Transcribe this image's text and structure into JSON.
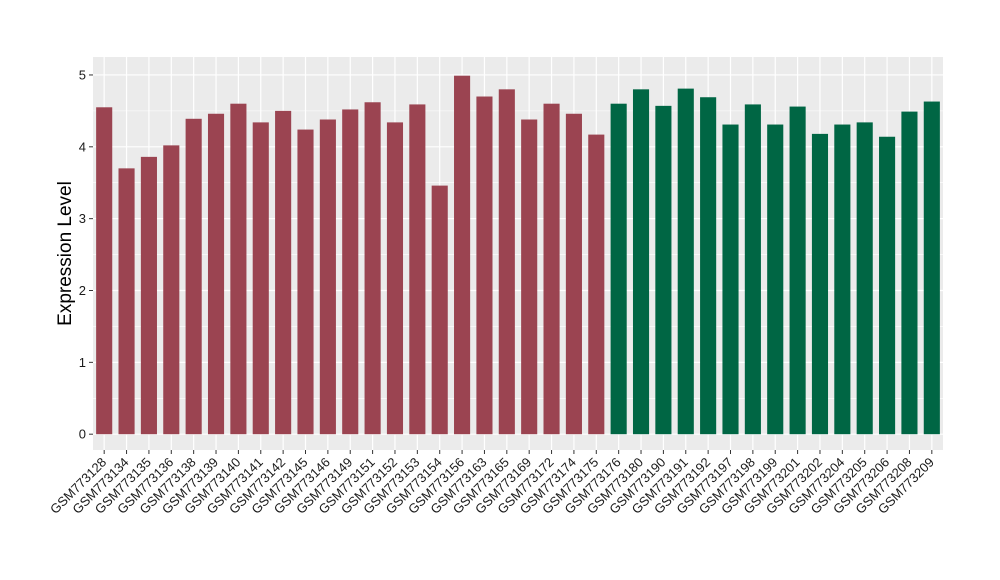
{
  "chart_data": {
    "type": "bar",
    "ylabel": "Expression Level",
    "xlabel": "",
    "ylim": [
      -0.22,
      5.25
    ],
    "y_ticks": [
      0,
      1,
      2,
      3,
      4,
      5
    ],
    "grid": true,
    "background_color": "#ebebeb",
    "grid_color": "#ffffff",
    "categories": [
      "GSM773128",
      "GSM773134",
      "GSM773135",
      "GSM773136",
      "GSM773138",
      "GSM773139",
      "GSM773140",
      "GSM773141",
      "GSM773142",
      "GSM773145",
      "GSM773146",
      "GSM773149",
      "GSM773151",
      "GSM773152",
      "GSM773153",
      "GSM773154",
      "GSM773156",
      "GSM773163",
      "GSM773165",
      "GSM773169",
      "GSM773172",
      "GSM773174",
      "GSM773175",
      "GSM773176",
      "GSM773180",
      "GSM773190",
      "GSM773191",
      "GSM773192",
      "GSM773197",
      "GSM773198",
      "GSM773199",
      "GSM773201",
      "GSM773202",
      "GSM773204",
      "GSM773205",
      "GSM773206",
      "GSM773208",
      "GSM773209"
    ],
    "values": [
      4.55,
      3.7,
      3.86,
      4.02,
      4.39,
      4.46,
      4.6,
      4.34,
      4.5,
      4.24,
      4.38,
      4.52,
      4.62,
      4.34,
      4.59,
      3.46,
      4.99,
      4.7,
      4.8,
      4.38,
      4.6,
      4.46,
      4.17,
      4.6,
      4.8,
      4.57,
      4.81,
      4.69,
      4.31,
      4.59,
      4.31,
      4.56,
      4.18,
      4.31,
      4.34,
      4.14,
      4.49,
      4.63
    ],
    "groups": [
      0,
      0,
      0,
      0,
      0,
      0,
      0,
      0,
      0,
      0,
      0,
      0,
      0,
      0,
      0,
      0,
      0,
      0,
      0,
      0,
      0,
      0,
      0,
      1,
      1,
      1,
      1,
      1,
      1,
      1,
      1,
      1,
      1,
      1,
      1,
      1,
      1,
      1
    ],
    "group_colors": [
      "#9b4451",
      "#006644"
    ]
  }
}
